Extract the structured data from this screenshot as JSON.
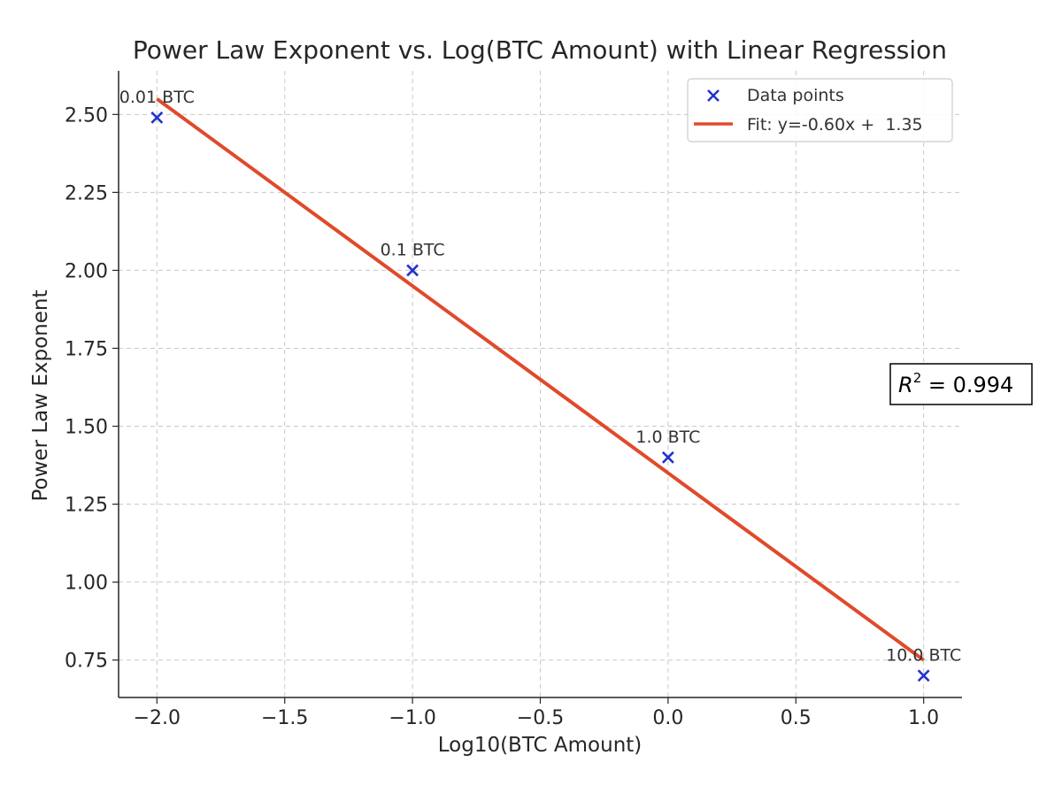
{
  "chart_data": {
    "type": "scatter",
    "title": "Power Law Exponent vs. Log(BTC Amount) with Linear Regression",
    "xlabel": "Log10(BTC Amount)",
    "ylabel": "Power Law Exponent",
    "xlim": [
      -2.15,
      1.15
    ],
    "ylim": [
      0.63,
      2.64
    ],
    "xticks": [
      -2.0,
      -1.5,
      -1.0,
      -0.5,
      0.0,
      0.5,
      1.0
    ],
    "xtick_labels": [
      "−2.0",
      "−1.5",
      "−1.0",
      "−0.5",
      "0.0",
      "0.5",
      "1.0"
    ],
    "yticks": [
      0.75,
      1.0,
      1.25,
      1.5,
      1.75,
      2.0,
      2.25,
      2.5
    ],
    "ytick_labels": [
      "0.75",
      "1.00",
      "1.25",
      "1.50",
      "1.75",
      "2.00",
      "2.25",
      "2.50"
    ],
    "grid": true,
    "legend_position": "top-right",
    "series": [
      {
        "name": "Data points",
        "kind": "scatter",
        "marker": "x",
        "color": "#2233cc",
        "x": [
          -2.0,
          -1.0,
          0.0,
          1.0
        ],
        "y": [
          2.49,
          2.0,
          1.4,
          0.7
        ],
        "point_labels": [
          "0.01 BTC",
          "0.1 BTC",
          "1.0 BTC",
          "10.0 BTC"
        ]
      },
      {
        "name": "Fit: y=-0.60x +  1.35",
        "kind": "line",
        "color": "#e04a2a",
        "slope": -0.6,
        "intercept": 1.35,
        "x_range": [
          -2.0,
          1.0
        ]
      }
    ],
    "annotation": {
      "base": "R",
      "superscript": "2",
      "suffix": " = 0.994"
    }
  }
}
